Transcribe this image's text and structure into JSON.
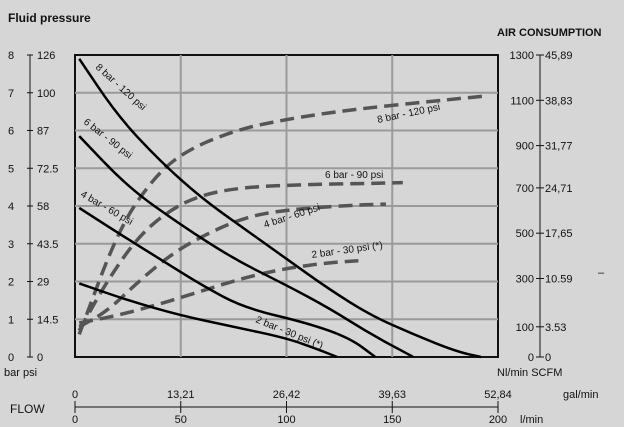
{
  "chart_data": {
    "type": "line",
    "title": "Fluid pressure",
    "right_title": "AIR CONSUMPTION",
    "flow_label": "FLOW",
    "x_unit_lmin": "l/min",
    "x_unit_gal": "gal/min",
    "left_units": "bar psi",
    "right_units": "Nl/min SCFM",
    "xlim": [
      0,
      200
    ],
    "ylim": [
      0,
      8
    ],
    "x_ticks_lmin": [
      "0",
      "50",
      "100",
      "150",
      "200"
    ],
    "x_ticks_gal": [
      "0",
      "13,21",
      "26,42",
      "39,63",
      "52,84"
    ],
    "y_ticks_bar": [
      "0",
      "1",
      "2",
      "3",
      "4",
      "5",
      "6",
      "7",
      "8"
    ],
    "y_ticks_psi": [
      "0",
      "14.5",
      "29",
      "43.5",
      "58",
      "72.5",
      "87",
      "100",
      "126"
    ],
    "right_ticks_nl": [
      "0",
      "100",
      "300",
      "500",
      "700",
      "900",
      "1100",
      "1300"
    ],
    "right_ticks_scfm": [
      "0",
      "3.53",
      "10.59",
      "17,65",
      "24,71",
      "31,77",
      "38,83",
      "45,89"
    ],
    "right_edge_mark": "–",
    "pressure_series": [
      {
        "name": "8 bar - 120 psi",
        "points": [
          [
            2,
            7.9
          ],
          [
            20,
            6.4
          ],
          [
            40,
            5.2
          ],
          [
            60,
            4.2
          ],
          [
            80,
            3.4
          ],
          [
            100,
            2.6
          ],
          [
            120,
            1.8
          ],
          [
            140,
            1.1
          ],
          [
            160,
            0.6
          ],
          [
            180,
            0.15
          ],
          [
            192,
            0
          ]
        ]
      },
      {
        "name": "6 bar - 90 psi",
        "points": [
          [
            2,
            5.85
          ],
          [
            25,
            4.5
          ],
          [
            50,
            3.5
          ],
          [
            75,
            2.6
          ],
          [
            100,
            1.9
          ],
          [
            120,
            1.3
          ],
          [
            140,
            0.6
          ],
          [
            160,
            0
          ]
        ]
      },
      {
        "name": "4 bar - 60 psi",
        "points": [
          [
            2,
            3.95
          ],
          [
            20,
            3.3
          ],
          [
            40,
            2.6
          ],
          [
            60,
            1.9
          ],
          [
            80,
            1.3
          ],
          [
            110,
            0.9
          ],
          [
            130,
            0.5
          ],
          [
            142,
            0
          ]
        ]
      },
      {
        "name": "2 bar - 30 psi (*)",
        "points": [
          [
            2,
            1.95
          ],
          [
            25,
            1.5
          ],
          [
            50,
            1.1
          ],
          [
            75,
            0.8
          ],
          [
            100,
            0.5
          ],
          [
            115,
            0.2
          ],
          [
            124,
            0
          ]
        ]
      }
    ],
    "air_series": [
      {
        "name": "8 bar - 120 psi",
        "points": [
          [
            2,
            0.6
          ],
          [
            20,
            3.3
          ],
          [
            35,
            4.6
          ],
          [
            50,
            5.4
          ],
          [
            75,
            6.0
          ],
          [
            100,
            6.3
          ],
          [
            130,
            6.55
          ],
          [
            170,
            6.78
          ],
          [
            195,
            6.92
          ]
        ]
      },
      {
        "name": "6 bar - 90 psi",
        "points": [
          [
            2,
            0.7
          ],
          [
            15,
            2.0
          ],
          [
            30,
            3.2
          ],
          [
            45,
            3.9
          ],
          [
            60,
            4.3
          ],
          [
            80,
            4.5
          ],
          [
            110,
            4.57
          ],
          [
            140,
            4.6
          ],
          [
            155,
            4.62
          ]
        ]
      },
      {
        "name": "4 bar - 60 psi",
        "points": [
          [
            2,
            0.8
          ],
          [
            15,
            1.2
          ],
          [
            30,
            2.0
          ],
          [
            45,
            2.7
          ],
          [
            60,
            3.2
          ],
          [
            80,
            3.7
          ],
          [
            100,
            3.9
          ],
          [
            130,
            4.02
          ],
          [
            147,
            4.05
          ]
        ]
      },
      {
        "name": "2 bar - 30 psi (*)",
        "points": [
          [
            2,
            0.9
          ],
          [
            20,
            1.1
          ],
          [
            40,
            1.4
          ],
          [
            60,
            1.75
          ],
          [
            80,
            2.1
          ],
          [
            100,
            2.35
          ],
          [
            120,
            2.5
          ],
          [
            134,
            2.55
          ]
        ]
      }
    ]
  }
}
